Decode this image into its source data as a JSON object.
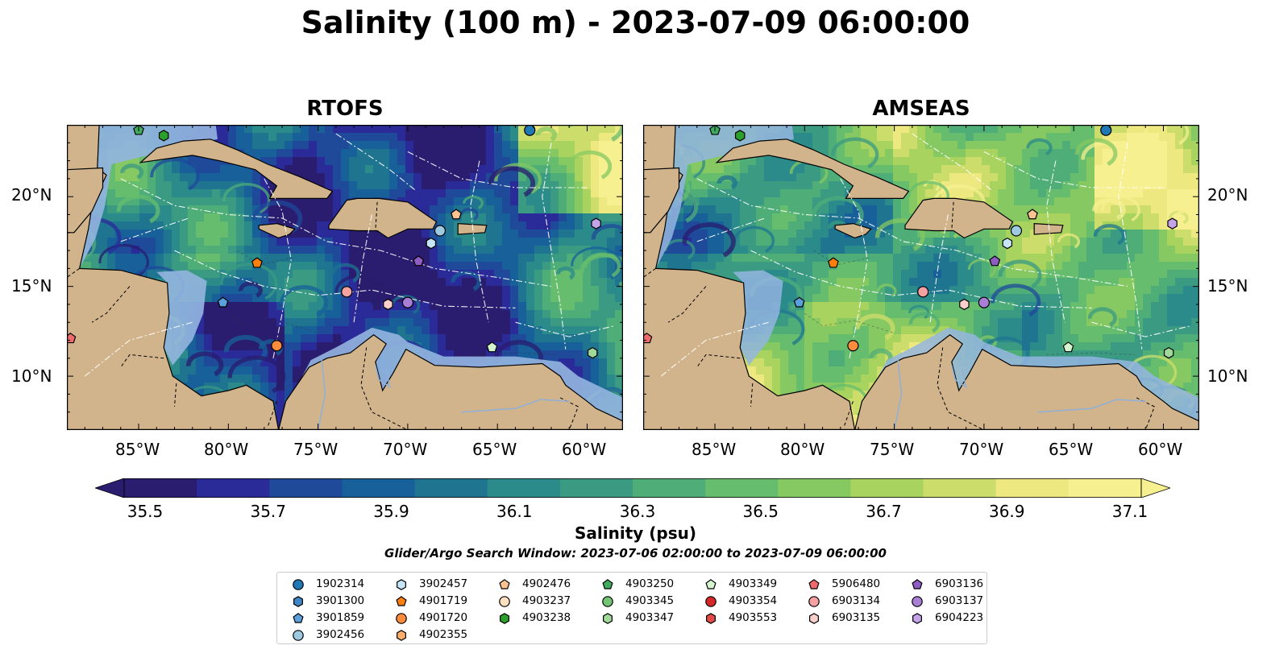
{
  "title": "Salinity (100 m) - 2023-07-09 06:00:00",
  "panels": [
    {
      "title": "RTOFS",
      "palette": "rtofs"
    },
    {
      "title": "AMSEAS",
      "palette": "amseas"
    }
  ],
  "axes": {
    "lon_ticks": [
      "85°W",
      "80°W",
      "75°W",
      "70°W",
      "65°W",
      "60°W"
    ],
    "lat_ticks": [
      "20°N",
      "15°N",
      "10°N"
    ],
    "lon_range": [
      -89,
      -58
    ],
    "lat_range": [
      7,
      24
    ]
  },
  "colorbar": {
    "label": "Salinity (psu)",
    "ticks": [
      "35.5",
      "35.7",
      "35.9",
      "36.1",
      "36.3",
      "36.5",
      "36.7",
      "36.9",
      "37.1"
    ],
    "min": 35.5,
    "max": 37.1,
    "colors": [
      "#2a1c6e",
      "#2a2a99",
      "#1f4a9a",
      "#17609a",
      "#1f7490",
      "#2b8a8a",
      "#3a9a82",
      "#4fae78",
      "#66bd6e",
      "#86c862",
      "#a8d35e",
      "#cddd6c",
      "#eee880",
      "#f6f090"
    ]
  },
  "search_window": "Glider/Argo Search Window: 2023-07-06 02:00:00 to 2023-07-09 06:00:00",
  "legend": [
    {
      "id": "1902314",
      "marker": "circle",
      "color": "#1f77b4"
    },
    {
      "id": "3901300",
      "marker": "hexagon",
      "color": "#3f86c6"
    },
    {
      "id": "3901859",
      "marker": "pentagon",
      "color": "#5aa0db"
    },
    {
      "id": "3902456",
      "marker": "circle",
      "color": "#9ecae1"
    },
    {
      "id": "3902457",
      "marker": "hexagon",
      "color": "#c6e6f7"
    },
    {
      "id": "4901719",
      "marker": "pentagon",
      "color": "#ff7f0e"
    },
    {
      "id": "4901720",
      "marker": "circle",
      "color": "#fd8d3c"
    },
    {
      "id": "4902355",
      "marker": "hexagon",
      "color": "#fdae6b"
    },
    {
      "id": "4902476",
      "marker": "pentagon",
      "color": "#fdc48f"
    },
    {
      "id": "4903237",
      "marker": "circle",
      "color": "#fee0c0"
    },
    {
      "id": "4903238",
      "marker": "hexagon",
      "color": "#2ca02c"
    },
    {
      "id": "4903250",
      "marker": "pentagon",
      "color": "#41ab5d"
    },
    {
      "id": "4903345",
      "marker": "circle",
      "color": "#74c476"
    },
    {
      "id": "4903347",
      "marker": "hexagon",
      "color": "#a1d99b"
    },
    {
      "id": "4903349",
      "marker": "pentagon",
      "color": "#d5f5cf"
    },
    {
      "id": "4903354",
      "marker": "circle",
      "color": "#d62728"
    },
    {
      "id": "4903553",
      "marker": "hexagon",
      "color": "#e34a4a"
    },
    {
      "id": "5906480",
      "marker": "pentagon",
      "color": "#ef6b6b"
    },
    {
      "id": "6903134",
      "marker": "circle",
      "color": "#f4a1a1"
    },
    {
      "id": "6903135",
      "marker": "hexagon",
      "color": "#fbd0cc"
    },
    {
      "id": "6903136",
      "marker": "pentagon",
      "color": "#8e5cc2"
    },
    {
      "id": "6903137",
      "marker": "circle",
      "color": "#a97ed6"
    },
    {
      "id": "6904223",
      "marker": "hexagon",
      "color": "#c4a3e8"
    }
  ],
  "floats": [
    {
      "id": "4903250",
      "lon": -85.0,
      "lat": 23.7
    },
    {
      "id": "4903238",
      "lon": -83.6,
      "lat": 23.4
    },
    {
      "id": "1902314",
      "lon": -63.2,
      "lat": 23.7
    },
    {
      "id": "4902476",
      "lon": -67.3,
      "lat": 19.0
    },
    {
      "id": "6904223",
      "lon": -59.5,
      "lat": 18.5
    },
    {
      "id": "3902456",
      "lon": -68.2,
      "lat": 18.1
    },
    {
      "id": "3902457",
      "lon": -68.7,
      "lat": 17.4
    },
    {
      "id": "6903136",
      "lon": -69.4,
      "lat": 16.4
    },
    {
      "id": "4901719",
      "lon": -78.4,
      "lat": 16.3
    },
    {
      "id": "6903134",
      "lon": -73.4,
      "lat": 14.7
    },
    {
      "id": "6903135",
      "lon": -71.1,
      "lat": 14.0
    },
    {
      "id": "6903137",
      "lon": -70.0,
      "lat": 14.1
    },
    {
      "id": "3901859",
      "lon": -80.3,
      "lat": 14.1
    },
    {
      "id": "4901720",
      "lon": -77.3,
      "lat": 11.7
    },
    {
      "id": "4903349",
      "lon": -65.3,
      "lat": 11.6
    },
    {
      "id": "4903347",
      "lon": -59.7,
      "lat": 11.3
    },
    {
      "id": "5906480",
      "lon": -88.8,
      "lat": 12.1
    }
  ]
}
